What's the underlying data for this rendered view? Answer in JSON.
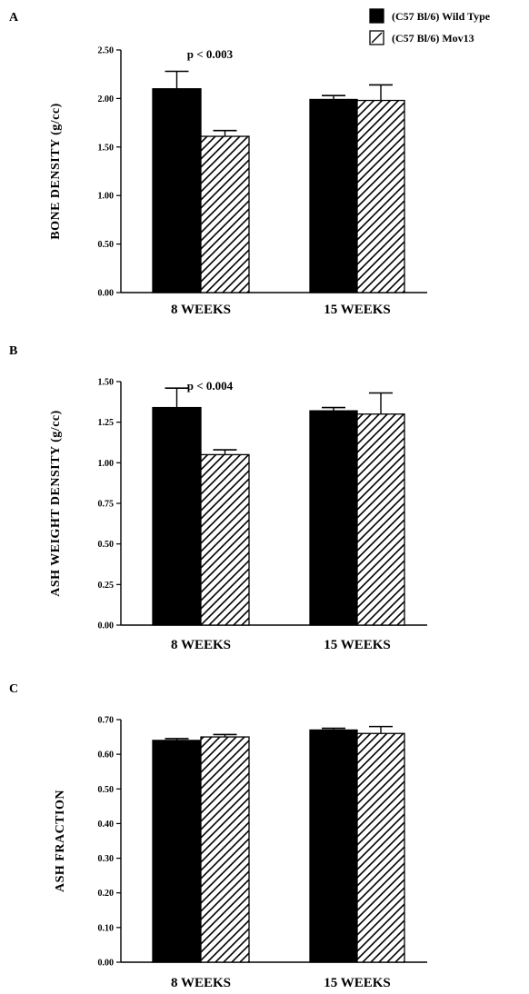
{
  "legend": [
    {
      "label": "(C57 Bl/6) Wild Type",
      "pattern": "solid"
    },
    {
      "label": "(C57 Bl/6) Mov13",
      "pattern": "hatched"
    }
  ],
  "chart_data": [
    {
      "type": "bar",
      "panel": "A",
      "ylabel": "BONE  DENSITY  (g/cc)",
      "ylim": [
        0,
        2.5
      ],
      "yticks": [
        "0.00",
        "0.50",
        "1.00",
        "1.50",
        "2.00",
        "2.50"
      ],
      "categories": [
        "8  WEEKS",
        "15  WEEKS"
      ],
      "series": [
        {
          "name": "(C57 Bl/6) Wild Type",
          "values": [
            2.1,
            1.99
          ],
          "errors": [
            0.18,
            0.04
          ]
        },
        {
          "name": "(C57 Bl/6) Mov13",
          "values": [
            1.61,
            1.98
          ],
          "errors": [
            0.06,
            0.16
          ]
        }
      ],
      "annotations": [
        {
          "text": "p < 0.003",
          "category": 0
        }
      ]
    },
    {
      "type": "bar",
      "panel": "B",
      "ylabel": "ASH  WEIGHT  DENSITY  (g/cc)",
      "ylim": [
        0,
        1.5
      ],
      "yticks": [
        "0.00",
        "0.25",
        "0.50",
        "0.75",
        "1.00",
        "1.25",
        "1.50"
      ],
      "categories": [
        "8  WEEKS",
        "15  WEEKS"
      ],
      "series": [
        {
          "name": "(C57 Bl/6) Wild Type",
          "values": [
            1.34,
            1.32
          ],
          "errors": [
            0.12,
            0.02
          ]
        },
        {
          "name": "(C57 Bl/6) Mov13",
          "values": [
            1.05,
            1.3
          ],
          "errors": [
            0.03,
            0.13
          ]
        }
      ],
      "annotations": [
        {
          "text": "p < 0.004",
          "category": 0
        }
      ]
    },
    {
      "type": "bar",
      "panel": "C",
      "ylabel": "ASH  FRACTION",
      "ylim": [
        0,
        0.7
      ],
      "yticks": [
        "0.00",
        "0.10",
        "0.20",
        "0.30",
        "0.40",
        "0.50",
        "0.60",
        "0.70"
      ],
      "categories": [
        "8  WEEKS",
        "15  WEEKS"
      ],
      "series": [
        {
          "name": "(C57 Bl/6) Wild Type",
          "values": [
            0.64,
            0.67
          ],
          "errors": [
            0.005,
            0.005
          ]
        },
        {
          "name": "(C57 Bl/6) Mov13",
          "values": [
            0.65,
            0.66
          ],
          "errors": [
            0.007,
            0.02
          ]
        }
      ],
      "annotations": []
    }
  ]
}
